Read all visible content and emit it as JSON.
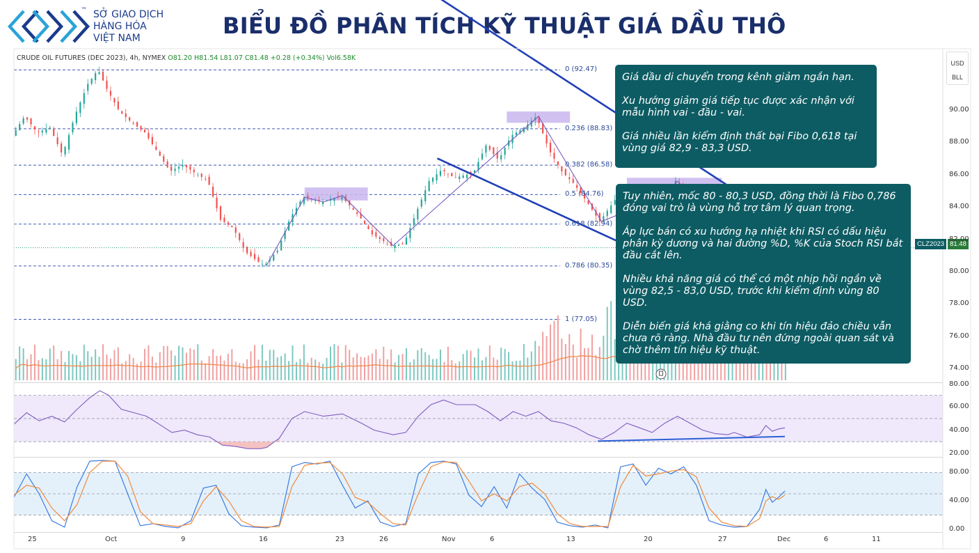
{
  "logo": {
    "name_lines": [
      "SỞ GIAO DỊCH",
      "HÀNG HÓA",
      "VIỆT NAM"
    ],
    "trademark": "™",
    "colors": {
      "primary": "#1a3b8c",
      "secondary": "#2aa3d6"
    }
  },
  "title": "BIỂU ĐỒ PHÂN TÍCH KỸ THUẬT GIÁ DẦU THÔ",
  "ticker": {
    "symbol": "CRUDE OIL FUTURES (DEC 2023), 4h, NYMEX",
    "open": "O81.20",
    "high": "H81.54",
    "low": "L81.07",
    "close": "C81.48",
    "change": "+0.28 (+0.34%)",
    "volume": "Vol6.58K"
  },
  "axis_units": [
    "USD",
    "BLL"
  ],
  "price_tag": {
    "symbol": "CLZ2023",
    "price": "81.48"
  },
  "notes": [
    [
      "Giá dầu di chuyển trong kênh giảm ngắn hạn.",
      "Xu hướng giảm giá tiếp tục được xác nhận với mẫu hình vai - đầu - vai.",
      "Giá nhiều lần kiểm định thất bại Fibo 0,618 tại vùng giá 82,9 - 83,3 USD."
    ],
    [
      "Tuy nhiên, mốc 80 - 80,3 USD, đồng thời là Fibo 0,786 đóng vai trò là vùng hỗ trợ tâm lý quan trọng.",
      "Áp lực bán có xu hướng hạ nhiệt khi RSI có dấu hiệu phân kỳ dương và hai đường %D, %K của Stoch RSI bắt đầu cắt lên.",
      "Nhiều khả năng giá có thể có một nhịp hồi ngắn về vùng 82,5 - 83,0 USD, trước khi kiểm định vùng 80 USD.",
      "Diễn biến giá khá giằng co khi tín hiệu đảo chiều vẫn chưa rõ ràng. Nhà đầu tư nên đứng ngoài quan sát và chờ thêm tín hiệu kỹ thuật."
    ]
  ],
  "chart_data": [
    {
      "type": "candlestick",
      "interval": "4h",
      "y_axis_ticks": [
        "90.00",
        "88.00",
        "86.00",
        "84.00",
        "82.00",
        "80.00",
        "78.00",
        "76.00",
        "74.00"
      ],
      "y_range": [
        73.2,
        93.0
      ],
      "x_axis_ticks": [
        "25",
        "Oct",
        "9",
        "16",
        "23",
        "26",
        "Nov",
        "6",
        "13",
        "20",
        "27",
        "Dec",
        "6",
        "11"
      ],
      "x_range_days": [
        -2.0,
        71.5
      ],
      "fibonacci_levels": [
        {
          "ratio": "0",
          "price": 92.47,
          "label": "0 (92.47)"
        },
        {
          "ratio": "0.236",
          "price": 88.83,
          "label": "0.236 (88.83)"
        },
        {
          "ratio": "0.382",
          "price": 86.58,
          "label": "0.382 (86.58)"
        },
        {
          "ratio": "0.5",
          "price": 84.76,
          "label": "0.5 (84.76)"
        },
        {
          "ratio": "0.618",
          "price": 82.94,
          "label": "0.618 (82.94)"
        },
        {
          "ratio": "0.786",
          "price": 80.35,
          "label": "0.786 (80.35)"
        },
        {
          "ratio": "1",
          "price": 77.05,
          "label": "1 (77.05)"
        }
      ],
      "last_price": 81.48,
      "price_path": [
        [
          -2.0,
          88.4
        ],
        [
          -1.0,
          89.6
        ],
        [
          0.0,
          88.6
        ],
        [
          1.0,
          88.9
        ],
        [
          2.0,
          87.2
        ],
        [
          3.0,
          89.7
        ],
        [
          4.0,
          91.6
        ],
        [
          4.8,
          92.5
        ],
        [
          5.5,
          91.3
        ],
        [
          6.5,
          89.9
        ],
        [
          7.5,
          89.2
        ],
        [
          8.5,
          88.6
        ],
        [
          9.5,
          87.4
        ],
        [
          10.5,
          86.2
        ],
        [
          11.5,
          86.6
        ],
        [
          12.5,
          86.1
        ],
        [
          13.5,
          85.6
        ],
        [
          14.5,
          83.2
        ],
        [
          15.5,
          82.7
        ],
        [
          16.5,
          81.2
        ],
        [
          17.5,
          80.6
        ],
        [
          18.0,
          80.4
        ],
        [
          19.0,
          81.3
        ],
        [
          20.0,
          83.3
        ],
        [
          21.0,
          84.6
        ],
        [
          22.5,
          84.3
        ],
        [
          24.0,
          84.7
        ],
        [
          25.5,
          83.4
        ],
        [
          26.5,
          82.3
        ],
        [
          28.0,
          81.6
        ],
        [
          29.0,
          81.7
        ],
        [
          30.0,
          83.7
        ],
        [
          31.0,
          85.6
        ],
        [
          32.0,
          86.3
        ],
        [
          33.0,
          85.8
        ],
        [
          34.5,
          86.1
        ],
        [
          35.5,
          87.8
        ],
        [
          36.5,
          86.9
        ],
        [
          37.5,
          88.4
        ],
        [
          38.5,
          88.9
        ],
        [
          39.5,
          89.6
        ],
        [
          40.5,
          87.5
        ],
        [
          41.5,
          86.2
        ],
        [
          42.5,
          85.4
        ],
        [
          43.5,
          84.3
        ],
        [
          44.5,
          83.1
        ],
        [
          45.5,
          84.2
        ],
        [
          46.5,
          85.3
        ],
        [
          47.5,
          84.5
        ],
        [
          48.5,
          83.4
        ],
        [
          49.5,
          84.7
        ],
        [
          50.5,
          85.6
        ],
        [
          51.5,
          84.3
        ],
        [
          52.5,
          83.1
        ],
        [
          53.5,
          82.6
        ],
        [
          54.5,
          82.2
        ],
        [
          55.0,
          82.9
        ],
        [
          56.0,
          81.3
        ],
        [
          57.0,
          80.4
        ],
        [
          57.5,
          81.5
        ],
        [
          58.0,
          80.6
        ],
        [
          58.5,
          81.2
        ],
        [
          59.0,
          81.48
        ]
      ],
      "annotations": {
        "head_and_shoulders_zones": [
          {
            "x": [
              21.0,
              26.0
            ],
            "y": [
              84.4,
              85.2
            ]
          },
          {
            "x": [
              37.0,
              42.0
            ],
            "y": [
              89.2,
              89.9
            ]
          },
          {
            "x": [
              46.5,
              54.0
            ],
            "y": [
              85.1,
              85.8
            ]
          }
        ],
        "channel_upper": [
          [
            29.5,
            98.0
          ],
          [
            63.0,
            81.0
          ]
        ],
        "channel_lower": [
          [
            31.5,
            87.0
          ],
          [
            63.0,
            75.7
          ]
        ]
      }
    },
    {
      "type": "bar",
      "name": "Volume",
      "color_up": "#7dc8c0",
      "color_down": "#f0a0a0",
      "ma_color": "#f08a4b"
    },
    {
      "type": "line",
      "name": "RSI",
      "y_axis_ticks": [
        "80.00",
        "60.00",
        "40.00",
        "20.00"
      ],
      "y_range": [
        17.5,
        80.0
      ],
      "band": [
        30,
        70
      ],
      "color": "#7e5bbf",
      "values": [
        [
          -2.0,
          45
        ],
        [
          -1.0,
          55
        ],
        [
          0.0,
          48
        ],
        [
          1.0,
          52
        ],
        [
          2.0,
          47
        ],
        [
          3.0,
          58
        ],
        [
          4.0,
          68
        ],
        [
          4.8,
          74
        ],
        [
          5.5,
          70
        ],
        [
          6.5,
          58
        ],
        [
          7.5,
          55
        ],
        [
          8.5,
          52
        ],
        [
          9.5,
          45
        ],
        [
          10.5,
          38
        ],
        [
          11.5,
          40
        ],
        [
          12.5,
          36
        ],
        [
          13.5,
          34
        ],
        [
          14.5,
          27
        ],
        [
          15.5,
          26
        ],
        [
          16.5,
          24
        ],
        [
          17.5,
          24
        ],
        [
          18.0,
          25
        ],
        [
          19.0,
          33
        ],
        [
          20.0,
          50
        ],
        [
          21.0,
          56
        ],
        [
          22.5,
          52
        ],
        [
          24.0,
          54
        ],
        [
          25.5,
          46
        ],
        [
          26.5,
          40
        ],
        [
          28.0,
          36
        ],
        [
          29.0,
          38
        ],
        [
          30.0,
          52
        ],
        [
          31.0,
          62
        ],
        [
          32.0,
          66
        ],
        [
          33.0,
          62
        ],
        [
          34.5,
          62
        ],
        [
          35.5,
          56
        ],
        [
          36.5,
          48
        ],
        [
          37.5,
          56
        ],
        [
          38.5,
          52
        ],
        [
          39.5,
          56
        ],
        [
          40.5,
          48
        ],
        [
          41.5,
          46
        ],
        [
          42.5,
          42
        ],
        [
          43.5,
          36
        ],
        [
          44.5,
          32
        ],
        [
          45.5,
          38
        ],
        [
          46.5,
          46
        ],
        [
          47.5,
          42
        ],
        [
          48.5,
          38
        ],
        [
          49.5,
          46
        ],
        [
          50.5,
          52
        ],
        [
          51.5,
          46
        ],
        [
          52.5,
          40
        ],
        [
          53.5,
          37
        ],
        [
          54.5,
          36
        ],
        [
          55.0,
          38
        ],
        [
          56.0,
          34
        ],
        [
          57.0,
          36
        ],
        [
          57.5,
          44
        ],
        [
          58.0,
          39
        ],
        [
          58.5,
          41
        ],
        [
          59.0,
          42
        ]
      ],
      "divergence_line": [
        [
          44.2,
          30.5
        ],
        [
          59.0,
          34.5
        ]
      ]
    },
    {
      "type": "line",
      "name": "Stoch RSI",
      "y_axis_ticks": [
        "80.00",
        "40.00",
        "0.00"
      ],
      "y_range": [
        -3.0,
        100.0
      ],
      "band": [
        20,
        80
      ],
      "series": [
        {
          "name": "%K",
          "color": "#3d7be0",
          "values": [
            [
              -2.0,
              45
            ],
            [
              -1.0,
              78
            ],
            [
              0.0,
              50
            ],
            [
              1.0,
              12
            ],
            [
              2.0,
              3
            ],
            [
              3.0,
              60
            ],
            [
              4.0,
              96
            ],
            [
              5.0,
              97
            ],
            [
              6.0,
              96
            ],
            [
              7.0,
              50
            ],
            [
              8.0,
              5
            ],
            [
              9.0,
              8
            ],
            [
              10.0,
              4
            ],
            [
              11.0,
              2
            ],
            [
              12.0,
              12
            ],
            [
              13.0,
              58
            ],
            [
              14.0,
              62
            ],
            [
              15.0,
              22
            ],
            [
              16.0,
              5
            ],
            [
              17.0,
              3
            ],
            [
              18.0,
              2
            ],
            [
              19.0,
              6
            ],
            [
              20.0,
              88
            ],
            [
              21.0,
              94
            ],
            [
              22.0,
              92
            ],
            [
              23.0,
              96
            ],
            [
              24.0,
              62
            ],
            [
              25.0,
              30
            ],
            [
              26.0,
              40
            ],
            [
              27.0,
              10
            ],
            [
              28.0,
              4
            ],
            [
              29.0,
              8
            ],
            [
              30.0,
              78
            ],
            [
              31.0,
              94
            ],
            [
              32.0,
              96
            ],
            [
              33.0,
              92
            ],
            [
              34.0,
              48
            ],
            [
              35.0,
              32
            ],
            [
              36.0,
              60
            ],
            [
              37.0,
              30
            ],
            [
              38.0,
              78
            ],
            [
              39.0,
              58
            ],
            [
              40.0,
              42
            ],
            [
              41.0,
              10
            ],
            [
              42.0,
              5
            ],
            [
              43.0,
              3
            ],
            [
              44.0,
              6
            ],
            [
              45.0,
              2
            ],
            [
              46.0,
              88
            ],
            [
              47.0,
              92
            ],
            [
              48.0,
              62
            ],
            [
              49.0,
              86
            ],
            [
              50.0,
              78
            ],
            [
              51.0,
              88
            ],
            [
              52.0,
              62
            ],
            [
              53.0,
              12
            ],
            [
              54.0,
              6
            ],
            [
              55.0,
              3
            ],
            [
              56.0,
              4
            ],
            [
              57.0,
              28
            ],
            [
              57.5,
              56
            ],
            [
              58.0,
              38
            ],
            [
              58.5,
              45
            ],
            [
              59.0,
              54
            ]
          ]
        },
        {
          "name": "%D",
          "color": "#f08a3b",
          "values": [
            [
              -2.0,
              48
            ],
            [
              -1.0,
              62
            ],
            [
              0.0,
              58
            ],
            [
              1.0,
              30
            ],
            [
              2.0,
              12
            ],
            [
              3.0,
              35
            ],
            [
              4.0,
              80
            ],
            [
              5.0,
              96
            ],
            [
              6.0,
              96
            ],
            [
              7.0,
              75
            ],
            [
              8.0,
              25
            ],
            [
              9.0,
              8
            ],
            [
              10.0,
              6
            ],
            [
              11.0,
              4
            ],
            [
              12.0,
              8
            ],
            [
              13.0,
              40
            ],
            [
              14.0,
              60
            ],
            [
              15.0,
              40
            ],
            [
              16.0,
              12
            ],
            [
              17.0,
              4
            ],
            [
              18.0,
              3
            ],
            [
              19.0,
              4
            ],
            [
              20.0,
              60
            ],
            [
              21.0,
              90
            ],
            [
              22.0,
              93
            ],
            [
              23.0,
              94
            ],
            [
              24.0,
              78
            ],
            [
              25.0,
              45
            ],
            [
              26.0,
              38
            ],
            [
              27.0,
              22
            ],
            [
              28.0,
              8
            ],
            [
              29.0,
              6
            ],
            [
              30.0,
              50
            ],
            [
              31.0,
              88
            ],
            [
              32.0,
              95
            ],
            [
              33.0,
              94
            ],
            [
              34.0,
              68
            ],
            [
              35.0,
              40
            ],
            [
              36.0,
              50
            ],
            [
              37.0,
              40
            ],
            [
              38.0,
              60
            ],
            [
              39.0,
              65
            ],
            [
              40.0,
              50
            ],
            [
              41.0,
              22
            ],
            [
              42.0,
              8
            ],
            [
              43.0,
              4
            ],
            [
              44.0,
              4
            ],
            [
              45.0,
              4
            ],
            [
              46.0,
              60
            ],
            [
              47.0,
              90
            ],
            [
              48.0,
              75
            ],
            [
              49.0,
              78
            ],
            [
              50.0,
              82
            ],
            [
              51.0,
              84
            ],
            [
              52.0,
              74
            ],
            [
              53.0,
              30
            ],
            [
              54.0,
              10
            ],
            [
              55.0,
              5
            ],
            [
              56.0,
              4
            ],
            [
              57.0,
              15
            ],
            [
              57.5,
              40
            ],
            [
              58.0,
              46
            ],
            [
              58.5,
              42
            ],
            [
              59.0,
              48
            ]
          ]
        }
      ]
    }
  ]
}
